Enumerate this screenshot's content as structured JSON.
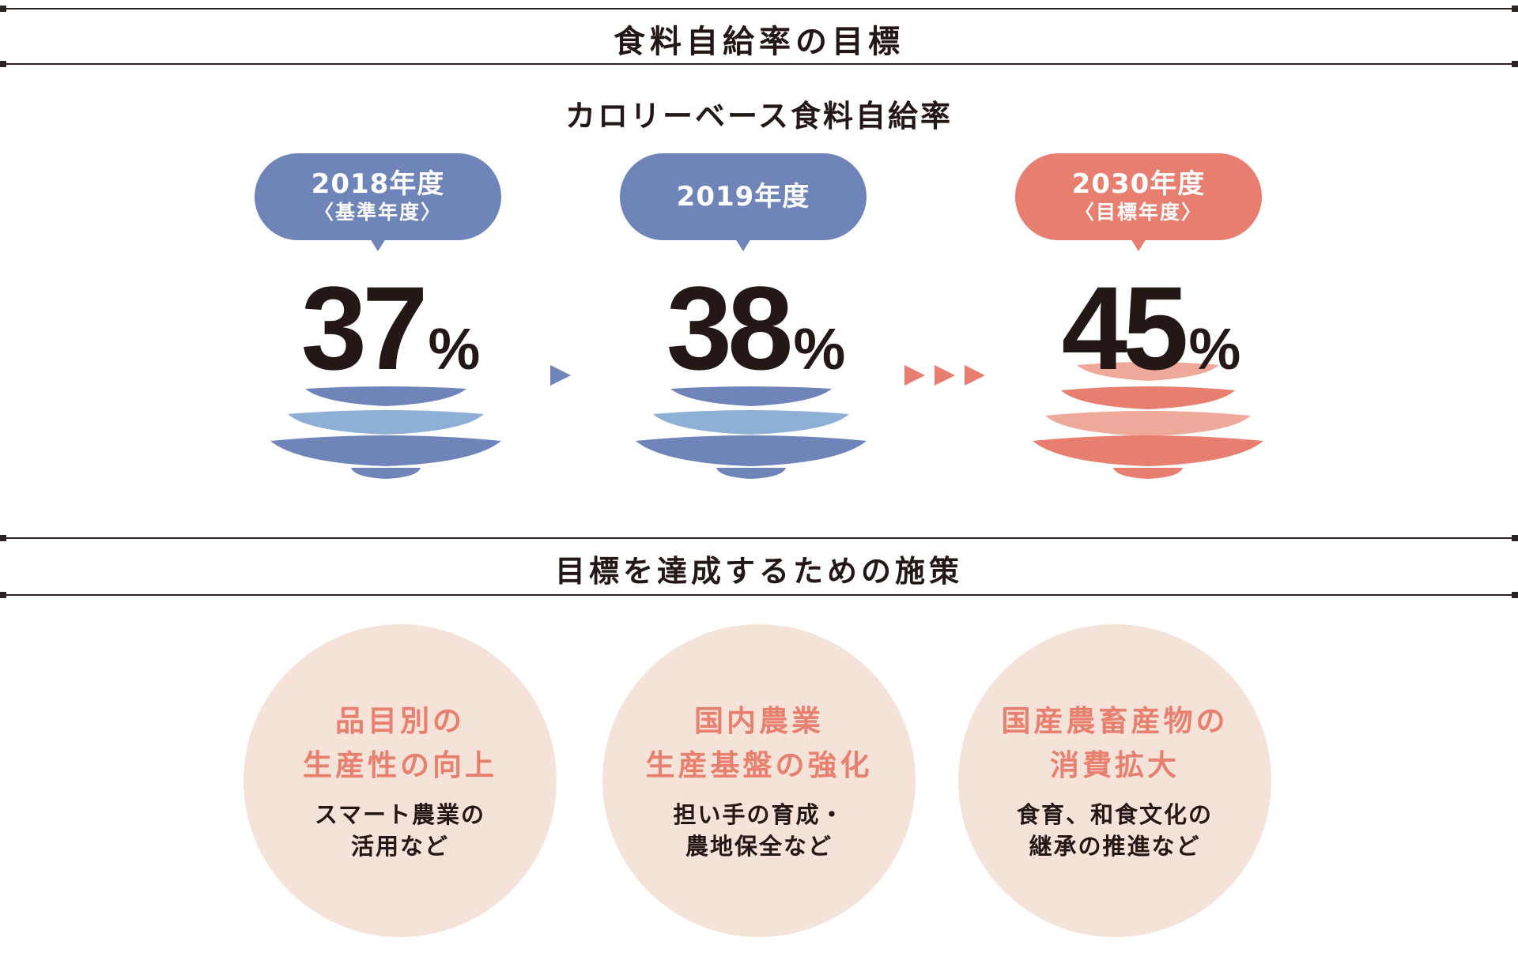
{
  "header": {
    "title": "食料自給率の目標",
    "subtitle": "カロリーベース食料自給率"
  },
  "targets": [
    {
      "year": "2018年度",
      "note": "〈基準年度〉",
      "value": "37",
      "unit": "%",
      "bubble_color": "#6f84b9"
    },
    {
      "year": "2019年度",
      "note": "",
      "value": "38",
      "unit": "%",
      "bubble_color": "#6f84b9"
    },
    {
      "year": "2030年度",
      "note": "〈目標年度〉",
      "value": "45",
      "unit": "%",
      "bubble_color": "#e87e6f"
    }
  ],
  "measures": {
    "title": "目標を達成するための施策",
    "items": [
      {
        "title_lines": [
          "品目別の",
          "生産性の向上"
        ],
        "desc_lines": [
          "スマート農業の",
          "活用など"
        ]
      },
      {
        "title_lines": [
          "国内農業",
          "生産基盤の強化"
        ],
        "desc_lines": [
          "担い手の育成・",
          "農地保全など"
        ]
      },
      {
        "title_lines": [
          "国産農畜産物の",
          "消費拡大"
        ],
        "desc_lines": [
          "食育、和食文化の",
          "継承の推進など"
        ]
      }
    ]
  },
  "colors": {
    "blue_dark": "#6f84b9",
    "blue_light": "#8fb0d6",
    "red_dark": "#e87e6f",
    "red_light": "#efa99a",
    "circle_bg": "#f5e2d8",
    "circle_title": "#e8806f"
  }
}
